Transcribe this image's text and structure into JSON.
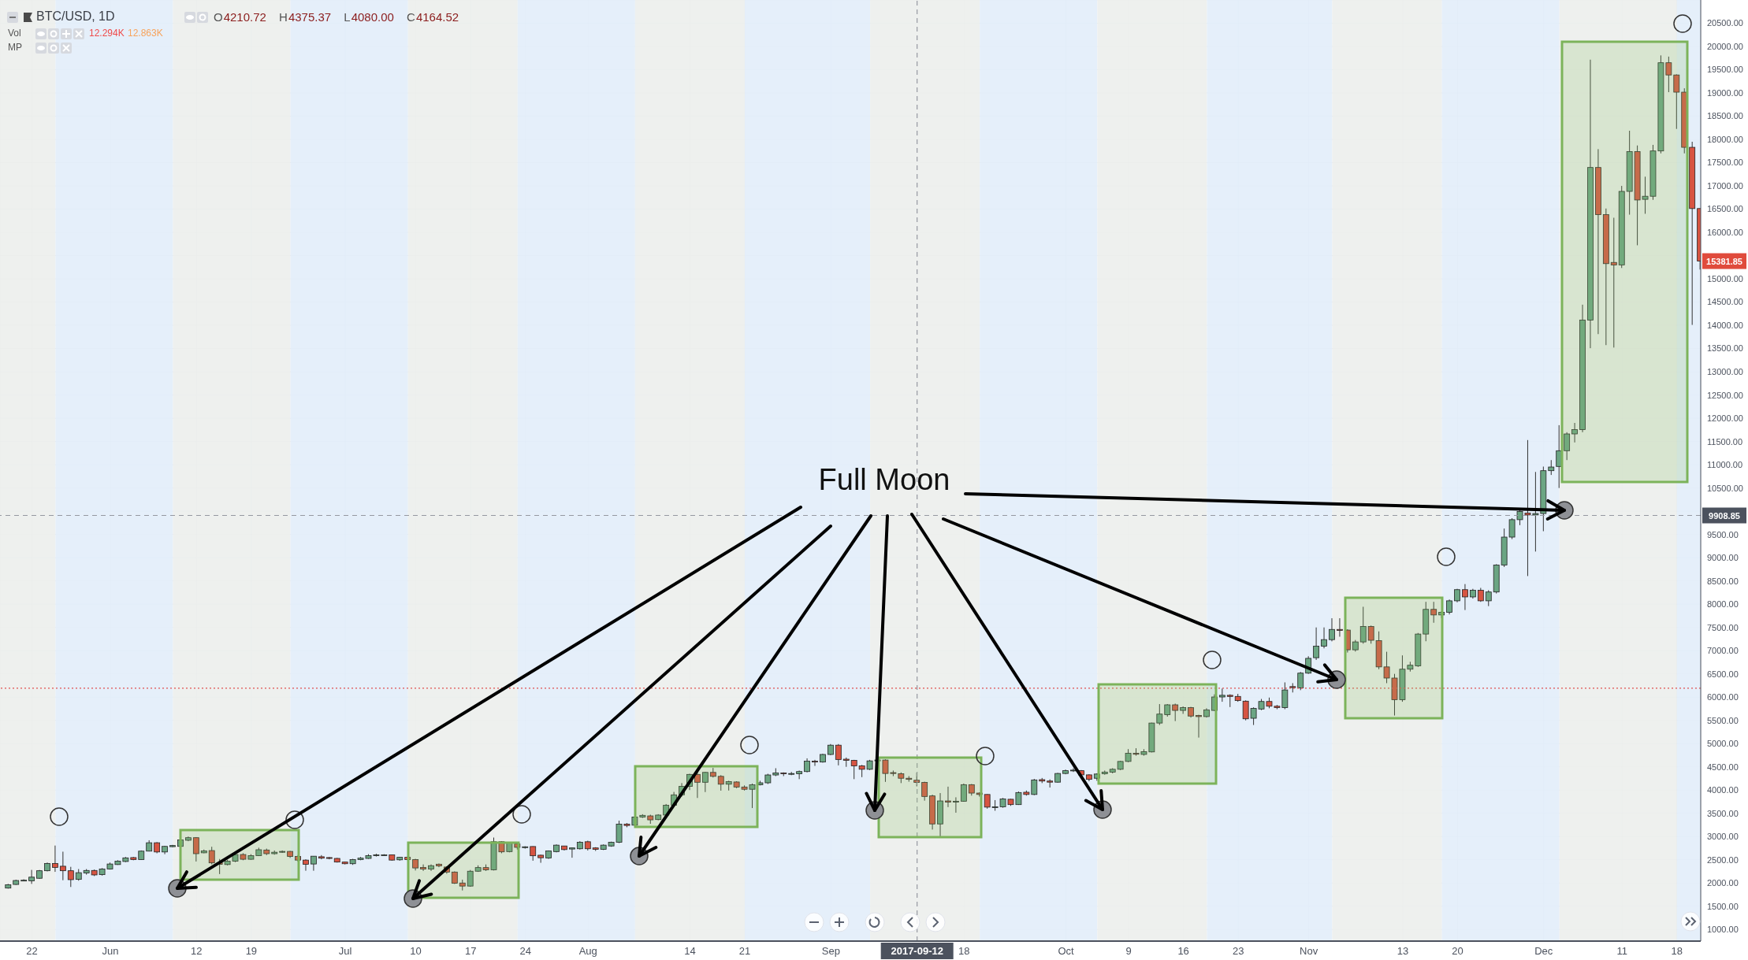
{
  "chart_data": {
    "type": "candlestick",
    "title": "BTC/USD, 1D",
    "subtitle": "O4210.72 H4375.37 L4080.00 C4164.52",
    "annotations": [
      "Vol",
      "12.294K",
      "12.863K",
      "MP",
      "Full Moon",
      {
        "text": "15381.85",
        "x": "2017-12-21",
        "y": 15381.85
      }
    ],
    "x": [
      "2017-05-19",
      "2017-05-20",
      "2017-05-21",
      "2017-05-22",
      "2017-05-23",
      "2017-05-24",
      "2017-05-25",
      "2017-05-26",
      "2017-05-27",
      "2017-05-28",
      "2017-05-29",
      "2017-05-30",
      "2017-05-31",
      "2017-06-01",
      "2017-06-02",
      "2017-06-03",
      "2017-06-04",
      "2017-06-05",
      "2017-06-06",
      "2017-06-07",
      "2017-06-08",
      "2017-06-09",
      "2017-06-10",
      "2017-06-11",
      "2017-06-12",
      "2017-06-13",
      "2017-06-14",
      "2017-06-15",
      "2017-06-16",
      "2017-06-17",
      "2017-06-18",
      "2017-06-19",
      "2017-06-20",
      "2017-06-21",
      "2017-06-22",
      "2017-06-23",
      "2017-06-24",
      "2017-06-25",
      "2017-06-26",
      "2017-06-27",
      "2017-06-28",
      "2017-06-29",
      "2017-06-30",
      "2017-07-01",
      "2017-07-02",
      "2017-07-03",
      "2017-07-04",
      "2017-07-05",
      "2017-07-06",
      "2017-07-07",
      "2017-07-08",
      "2017-07-09",
      "2017-07-10",
      "2017-07-11",
      "2017-07-12",
      "2017-07-13",
      "2017-07-14",
      "2017-07-15",
      "2017-07-16",
      "2017-07-17",
      "2017-07-18",
      "2017-07-19",
      "2017-07-20",
      "2017-07-21",
      "2017-07-22",
      "2017-07-23",
      "2017-07-24",
      "2017-07-25",
      "2017-07-26",
      "2017-07-27",
      "2017-07-28",
      "2017-07-29",
      "2017-07-30",
      "2017-07-31",
      "2017-08-01",
      "2017-08-02",
      "2017-08-03",
      "2017-08-04",
      "2017-08-05",
      "2017-08-06",
      "2017-08-07",
      "2017-08-08",
      "2017-08-09",
      "2017-08-10",
      "2017-08-11",
      "2017-08-12",
      "2017-08-13",
      "2017-08-14",
      "2017-08-15",
      "2017-08-16",
      "2017-08-17",
      "2017-08-18",
      "2017-08-19",
      "2017-08-20",
      "2017-08-21",
      "2017-08-22",
      "2017-08-23",
      "2017-08-24",
      "2017-08-25",
      "2017-08-26",
      "2017-08-27",
      "2017-08-28",
      "2017-08-29",
      "2017-08-30",
      "2017-08-31",
      "2017-09-01",
      "2017-09-02",
      "2017-09-03",
      "2017-09-04",
      "2017-09-05",
      "2017-09-06",
      "2017-09-07",
      "2017-09-08",
      "2017-09-09",
      "2017-09-10",
      "2017-09-11",
      "2017-09-12",
      "2017-09-13",
      "2017-09-14",
      "2017-09-15",
      "2017-09-16",
      "2017-09-17",
      "2017-09-18",
      "2017-09-19",
      "2017-09-20",
      "2017-09-21",
      "2017-09-22",
      "2017-09-23",
      "2017-09-24",
      "2017-09-25",
      "2017-09-26",
      "2017-09-27",
      "2017-09-28",
      "2017-09-29",
      "2017-09-30",
      "2017-10-01",
      "2017-10-02",
      "2017-10-03",
      "2017-10-04",
      "2017-10-05",
      "2017-10-06",
      "2017-10-07",
      "2017-10-08",
      "2017-10-09",
      "2017-10-10",
      "2017-10-11",
      "2017-10-12",
      "2017-10-13",
      "2017-10-14",
      "2017-10-15",
      "2017-10-16",
      "2017-10-17",
      "2017-10-18",
      "2017-10-19",
      "2017-10-20",
      "2017-10-21",
      "2017-10-22",
      "2017-10-23",
      "2017-10-24",
      "2017-10-25",
      "2017-10-26",
      "2017-10-27",
      "2017-10-28",
      "2017-10-29",
      "2017-10-30",
      "2017-10-31",
      "2017-11-01",
      "2017-11-02",
      "2017-11-03",
      "2017-11-04",
      "2017-11-05",
      "2017-11-06",
      "2017-11-07",
      "2017-11-08",
      "2017-11-09",
      "2017-11-10",
      "2017-11-11",
      "2017-11-12",
      "2017-11-13",
      "2017-11-14",
      "2017-11-15",
      "2017-11-16",
      "2017-11-17",
      "2017-11-18",
      "2017-11-19",
      "2017-11-20",
      "2017-11-21",
      "2017-11-22",
      "2017-11-23",
      "2017-11-24",
      "2017-11-25",
      "2017-11-26",
      "2017-11-27",
      "2017-11-28",
      "2017-11-29",
      "2017-11-30",
      "2017-12-01",
      "2017-12-02",
      "2017-12-03",
      "2017-12-04",
      "2017-12-05",
      "2017-12-06",
      "2017-12-07",
      "2017-12-08",
      "2017-12-09",
      "2017-12-10",
      "2017-12-11",
      "2017-12-12",
      "2017-12-13",
      "2017-12-14",
      "2017-12-15",
      "2017-12-16",
      "2017-12-17",
      "2017-12-18",
      "2017-12-19",
      "2017-12-20",
      "2017-12-21"
    ],
    "ohlc": [
      [
        1891,
        1980,
        1880,
        1963
      ],
      [
        1969,
        2070,
        1960,
        2054
      ],
      [
        2054,
        2080,
        2040,
        2060
      ],
      [
        2047,
        2282,
        1981,
        2126
      ],
      [
        2102,
        2280,
        2090,
        2264
      ],
      [
        2264,
        2440,
        2250,
        2421
      ],
      [
        2421,
        2806,
        2240,
        2336
      ],
      [
        2361,
        2674,
        2060,
        2264
      ],
      [
        2264,
        2348,
        1915,
        2072
      ],
      [
        2078,
        2300,
        2050,
        2222
      ],
      [
        2216,
        2300,
        2180,
        2270
      ],
      [
        2270,
        2290,
        2150,
        2174
      ],
      [
        2180,
        2320,
        2160,
        2300
      ],
      [
        2300,
        2440,
        2290,
        2409
      ],
      [
        2397,
        2490,
        2390,
        2469
      ],
      [
        2463,
        2560,
        2450,
        2541
      ],
      [
        2547,
        2560,
        2490,
        2505
      ],
      [
        2505,
        2700,
        2500,
        2686
      ],
      [
        2686,
        2920,
        2680,
        2866
      ],
      [
        2866,
        2880,
        2640,
        2668
      ],
      [
        2668,
        2800,
        2620,
        2788
      ],
      [
        2782,
        2820,
        2770,
        2806
      ],
      [
        2788,
        2960,
        2780,
        2926
      ],
      [
        2920,
        3000,
        2900,
        2975
      ],
      [
        2975,
        2985,
        2463,
        2631
      ],
      [
        2650,
        2720,
        2640,
        2692
      ],
      [
        2698,
        2780,
        2400,
        2433
      ],
      [
        2433,
        2517,
        2192,
        2403
      ],
      [
        2397,
        2500,
        2380,
        2469
      ],
      [
        2469,
        2640,
        2450,
        2613
      ],
      [
        2613,
        2640,
        2490,
        2511
      ],
      [
        2511,
        2620,
        2500,
        2589
      ],
      [
        2589,
        2760,
        2580,
        2716
      ],
      [
        2710,
        2740,
        2600,
        2631
      ],
      [
        2631,
        2700,
        2610,
        2662
      ],
      [
        2662,
        2700,
        2650,
        2680
      ],
      [
        2680,
        2690,
        2540,
        2571
      ],
      [
        2571,
        2600,
        2460,
        2493
      ],
      [
        2493,
        2510,
        2264,
        2403
      ],
      [
        2409,
        2580,
        2264,
        2577
      ],
      [
        2565,
        2600,
        2510,
        2535
      ],
      [
        2547,
        2560,
        2510,
        2529
      ],
      [
        2529,
        2540,
        2440,
        2451
      ],
      [
        2451,
        2460,
        2400,
        2415
      ],
      [
        2415,
        2520,
        2390,
        2505
      ],
      [
        2505,
        2560,
        2490,
        2535
      ],
      [
        2529,
        2620,
        2520,
        2589
      ],
      [
        2589,
        2630,
        2570,
        2607
      ],
      [
        2601,
        2620,
        2590,
        2607
      ],
      [
        2607,
        2610,
        2480,
        2493
      ],
      [
        2499,
        2560,
        2480,
        2553
      ],
      [
        2553,
        2570,
        2490,
        2505
      ],
      [
        2505,
        2520,
        2270,
        2324
      ],
      [
        2336,
        2400,
        2260,
        2300
      ],
      [
        2300,
        2400,
        2260,
        2373
      ],
      [
        2405,
        2420,
        2340,
        2368
      ],
      [
        2344,
        2360,
        2200,
        2236
      ],
      [
        2236,
        2250,
        1980,
        1994
      ],
      [
        2000,
        2072,
        1840,
        1934
      ],
      [
        1934,
        2280,
        1920,
        2254
      ],
      [
        2254,
        2380,
        2240,
        2332
      ],
      [
        2332,
        2400,
        2260,
        2284
      ],
      [
        2284,
        2978,
        2270,
        2888
      ],
      [
        2888,
        2900,
        2640,
        2670
      ],
      [
        2676,
        2880,
        2660,
        2858
      ],
      [
        2840,
        2860,
        2720,
        2767
      ],
      [
        2767,
        2790,
        2740,
        2779
      ],
      [
        2785,
        2790,
        2480,
        2586
      ],
      [
        2598,
        2610,
        2435,
        2544
      ],
      [
        2538,
        2700,
        2520,
        2689
      ],
      [
        2676,
        2830,
        2660,
        2815
      ],
      [
        2797,
        2800,
        2700,
        2719
      ],
      [
        2731,
        2760,
        2544,
        2755
      ],
      [
        2737,
        2900,
        2720,
        2876
      ],
      [
        2888,
        2910,
        2700,
        2737
      ],
      [
        2755,
        2770,
        2690,
        2725
      ],
      [
        2725,
        2830,
        2710,
        2815
      ],
      [
        2797,
        2890,
        2780,
        2876
      ],
      [
        2876,
        3341,
        2860,
        3268
      ],
      [
        3268,
        3290,
        3200,
        3238
      ],
      [
        3244,
        3430,
        3220,
        3419
      ],
      [
        3419,
        3480,
        3400,
        3456
      ],
      [
        3444,
        3470,
        3274,
        3359
      ],
      [
        3365,
        3480,
        3350,
        3462
      ],
      [
        3462,
        3700,
        3450,
        3673
      ],
      [
        3673,
        3960,
        3650,
        3897
      ],
      [
        3897,
        4150,
        3860,
        4078
      ],
      [
        4078,
        4350,
        4000,
        4337
      ],
      [
        4337,
        4390,
        3830,
        4168
      ],
      [
        4168,
        4390,
        3957,
        4380
      ],
      [
        4380,
        4476,
        4270,
        4295
      ],
      [
        4295,
        4320,
        3987,
        4126
      ],
      [
        4126,
        4200,
        3990,
        4180
      ],
      [
        4174,
        4190,
        4040,
        4066
      ],
      [
        4066,
        4100,
        3990,
        4017
      ],
      [
        4017,
        4140,
        3613,
        4114
      ],
      [
        4114,
        4200,
        4100,
        4156
      ],
      [
        4156,
        4350,
        4130,
        4325
      ],
      [
        4325,
        4470,
        4300,
        4368
      ],
      [
        4368,
        4380,
        4300,
        4350
      ],
      [
        4350,
        4390,
        4320,
        4356
      ],
      [
        4350,
        4420,
        4235,
        4398
      ],
      [
        4398,
        4682,
        4380,
        4621
      ],
      [
        4621,
        4650,
        4520,
        4603
      ],
      [
        4603,
        4780,
        4590,
        4766
      ],
      [
        4766,
        4990,
        4750,
        4966
      ],
      [
        4966,
        4990,
        4531,
        4658
      ],
      [
        4664,
        4700,
        4500,
        4640
      ],
      [
        4640,
        4650,
        4235,
        4519
      ],
      [
        4520,
        4540,
        4278,
        4447
      ],
      [
        4447,
        4650,
        4430,
        4628
      ],
      [
        4628,
        4660,
        4600,
        4646
      ],
      [
        4646,
        4660,
        4176,
        4357
      ],
      [
        4375,
        4420,
        4300,
        4357
      ],
      [
        4351,
        4380,
        4150,
        4254
      ],
      [
        4254,
        4300,
        4180,
        4230
      ],
      [
        4210.72,
        4375.37,
        4080,
        4164.52
      ],
      [
        4165,
        4180,
        3772,
        3862
      ],
      [
        3874,
        3900,
        3150,
        3271
      ],
      [
        3271,
        3935,
        3000,
        3766
      ],
      [
        3766,
        4073,
        3633,
        3740
      ],
      [
        3740,
        3844,
        3513,
        3760
      ],
      [
        3760,
        4140,
        3750,
        4116
      ],
      [
        4116,
        4130,
        3880,
        3935
      ],
      [
        3935,
        3950,
        3860,
        3905
      ],
      [
        3905,
        3910,
        3600,
        3633
      ],
      [
        3633,
        3784,
        3555,
        3640
      ],
      [
        3640,
        3830,
        3620,
        3808
      ],
      [
        3802,
        3810,
        3660,
        3687
      ],
      [
        3687,
        3970,
        3680,
        3947
      ],
      [
        3953,
        3990,
        3880,
        3905
      ],
      [
        3905,
        4240,
        3890,
        4218
      ],
      [
        4224,
        4260,
        4150,
        4194
      ],
      [
        4194,
        4230,
        4055,
        4170
      ],
      [
        4170,
        4370,
        4160,
        4357
      ],
      [
        4357,
        4440,
        4340,
        4417
      ],
      [
        4417,
        4470,
        4390,
        4429
      ],
      [
        4417,
        4430,
        4280,
        4327
      ],
      [
        4327,
        4340,
        4190,
        4230
      ],
      [
        4254,
        4360,
        4200,
        4345
      ],
      [
        4351,
        4420,
        4330,
        4387
      ],
      [
        4387,
        4470,
        4360,
        4447
      ],
      [
        4447,
        4630,
        4430,
        4616
      ],
      [
        4616,
        4881,
        4600,
        4791
      ],
      [
        4791,
        4900,
        4740,
        4770
      ],
      [
        4767,
        4880,
        4740,
        4827
      ],
      [
        4821,
        5450,
        4810,
        5442
      ],
      [
        5442,
        5850,
        5400,
        5635
      ],
      [
        5623,
        5850,
        5580,
        5834
      ],
      [
        5834,
        5860,
        5484,
        5714
      ],
      [
        5714,
        5800,
        5640,
        5774
      ],
      [
        5774,
        5790,
        5560,
        5593
      ],
      [
        5605,
        5620,
        5129,
        5581
      ],
      [
        5581,
        5760,
        5560,
        5726
      ],
      [
        5714,
        6060,
        5700,
        6003
      ],
      [
        6003,
        6184,
        5900,
        6039
      ],
      [
        6039,
        6060,
        5786,
        6015
      ],
      [
        6015,
        6070,
        5900,
        5925
      ],
      [
        5913,
        5930,
        5500,
        5533
      ],
      [
        5545,
        5780,
        5400,
        5756
      ],
      [
        5744,
        5960,
        5720,
        5906
      ],
      [
        5906,
        5990,
        5760,
        5804
      ],
      [
        5804,
        5830,
        5740,
        5774
      ],
      [
        5774,
        6317,
        5740,
        6154
      ],
      [
        6226,
        6300,
        6100,
        6205
      ],
      [
        6198,
        6540,
        6150,
        6516
      ],
      [
        6516,
        6880,
        6500,
        6834
      ],
      [
        6848,
        7499,
        6800,
        7096
      ],
      [
        7096,
        7499,
        7050,
        7237
      ],
      [
        7237,
        7697,
        7200,
        7456
      ],
      [
        7456,
        7697,
        7300,
        7435
      ],
      [
        7442,
        7460,
        6960,
        7018
      ],
      [
        7018,
        7230,
        6980,
        7188
      ],
      [
        7188,
        7944,
        7150,
        7520
      ],
      [
        7520,
        7540,
        7150,
        7223
      ],
      [
        7216,
        7414,
        6600,
        6650
      ],
      [
        6650,
        6976,
        6300,
        6410
      ],
      [
        6410,
        6500,
        5604,
        5943
      ],
      [
        5943,
        6898,
        5900,
        6601
      ],
      [
        6601,
        6760,
        6550,
        6686
      ],
      [
        6672,
        7380,
        6650,
        7357
      ],
      [
        7357,
        8050,
        7202,
        7888
      ],
      [
        7888,
        8050,
        7600,
        7768
      ],
      [
        7768,
        7850,
        7700,
        7824
      ],
      [
        7824,
        8100,
        7780,
        8072
      ],
      [
        8072,
        8330,
        8040,
        8312
      ],
      [
        8312,
        8432,
        7874,
        8156
      ],
      [
        8156,
        8330,
        8120,
        8298
      ],
      [
        8298,
        8350,
        8050,
        8072
      ],
      [
        8072,
        8300,
        7958,
        8262
      ],
      [
        8262,
        8860,
        8230,
        8842
      ],
      [
        8842,
        9627,
        8800,
        9443
      ],
      [
        9443,
        9850,
        9400,
        9818
      ],
      [
        9818,
        10050,
        9700,
        9995
      ],
      [
        9960,
        11531,
        8605,
        9920
      ],
      [
        9920,
        10845,
        9132,
        9950
      ],
      [
        9950,
        10960,
        9570,
        10872
      ],
      [
        10872,
        11100,
        10780,
        10951
      ],
      [
        10963,
        11851,
        10500,
        11302
      ],
      [
        11302,
        11700,
        11100,
        11663
      ],
      [
        11663,
        11900,
        11480,
        11755
      ],
      [
        11755,
        14444,
        11700,
        14114
      ],
      [
        14114,
        19716,
        13508,
        17396
      ],
      [
        17396,
        17791,
        13811,
        16381
      ],
      [
        16381,
        16513,
        13574,
        15327
      ],
      [
        15353,
        16315,
        13521,
        15300
      ],
      [
        15300,
        17000,
        15234,
        16882
      ],
      [
        16882,
        18187,
        16381,
        17738
      ],
      [
        17738,
        17870,
        15722,
        16697
      ],
      [
        16711,
        17198,
        16400,
        16777
      ],
      [
        16777,
        17883,
        16700,
        17752
      ],
      [
        17752,
        19808,
        17700,
        19650
      ],
      [
        19650,
        19782,
        19017,
        19387
      ],
      [
        19387,
        19400,
        18226,
        19017
      ],
      [
        19017,
        19100,
        17700,
        17830
      ],
      [
        17830,
        17950,
        14009,
        16513
      ],
      [
        16513,
        16513,
        15200,
        15381.85
      ]
    ],
    "xlim": [
      "2017-05-17T22:00",
      "2017-12-21T01:00"
    ],
    "xticks": [
      {
        "value": "2017-05-22",
        "label": "22"
      },
      {
        "value": "2017-06-01",
        "label": "Jun"
      },
      {
        "value": "2017-06-12",
        "label": "12"
      },
      {
        "value": "2017-06-19",
        "label": "19"
      },
      {
        "value": "2017-07-01",
        "label": "Jul"
      },
      {
        "value": "2017-07-10",
        "label": "10"
      },
      {
        "value": "2017-07-17",
        "label": "17"
      },
      {
        "value": "2017-07-24",
        "label": "24"
      },
      {
        "value": "2017-08-01",
        "label": "Aug"
      },
      {
        "value": "2017-08-14",
        "label": "14"
      },
      {
        "value": "2017-08-21",
        "label": "21"
      },
      {
        "value": "2017-09-01",
        "label": "Sep"
      },
      {
        "value": "2017-09-18",
        "label": "18"
      },
      {
        "value": "2017-10-01",
        "label": "Oct"
      },
      {
        "value": "2017-10-09",
        "label": "9"
      },
      {
        "value": "2017-10-16",
        "label": "16"
      },
      {
        "value": "2017-10-23",
        "label": "23"
      },
      {
        "value": "2017-11-01",
        "label": "Nov"
      },
      {
        "value": "2017-11-13",
        "label": "13"
      },
      {
        "value": "2017-11-20",
        "label": "20"
      },
      {
        "value": "2017-12-01",
        "label": "Dec"
      },
      {
        "value": "2017-12-11",
        "label": "11"
      },
      {
        "value": "2017-12-18",
        "label": "18"
      }
    ],
    "ylim": [
      750,
      21000
    ],
    "yticks": [
      {
        "value": 1000,
        "label": "1000.00"
      },
      {
        "value": 1500,
        "label": "1500.00"
      },
      {
        "value": 2000,
        "label": "2000.00"
      },
      {
        "value": 2500,
        "label": "2500.00"
      },
      {
        "value": 3000,
        "label": "3000.00"
      },
      {
        "value": 3500,
        "label": "3500.00"
      },
      {
        "value": 4000,
        "label": "4000.00"
      },
      {
        "value": 4500,
        "label": "4500.00"
      },
      {
        "value": 5000,
        "label": "5000.00"
      },
      {
        "value": 5500,
        "label": "5500.00"
      },
      {
        "value": 6000,
        "label": "6000.00"
      },
      {
        "value": 6500,
        "label": "6500.00"
      },
      {
        "value": 7000,
        "label": "7000.00"
      },
      {
        "value": 7500,
        "label": "7500.00"
      },
      {
        "value": 8000,
        "label": "8000.00"
      },
      {
        "value": 8500,
        "label": "8500.00"
      },
      {
        "value": 9000,
        "label": "9000.00"
      },
      {
        "value": 9500,
        "label": "9500.00"
      },
      {
        "value": 10000,
        "label": null
      },
      {
        "value": 10500,
        "label": "10500.00"
      },
      {
        "value": 11000,
        "label": "11000.00"
      },
      {
        "value": 11500,
        "label": "11500.00"
      },
      {
        "value": 12000,
        "label": "12000.00"
      },
      {
        "value": 12500,
        "label": "12500.00"
      },
      {
        "value": 13000,
        "label": "13000.00"
      },
      {
        "value": 13500,
        "label": "13500.00"
      },
      {
        "value": 14000,
        "label": "14000.00"
      },
      {
        "value": 14500,
        "label": "14500.00"
      },
      {
        "value": 15000,
        "label": "15000.00"
      },
      {
        "value": 15500,
        "label": null
      },
      {
        "value": 16000,
        "label": "16000.00"
      },
      {
        "value": 16500,
        "label": "16500.00"
      },
      {
        "value": 17000,
        "label": "17000.00"
      },
      {
        "value": 17500,
        "label": "17500.00"
      },
      {
        "value": 18000,
        "label": "18000.00"
      },
      {
        "value": 18500,
        "label": "18500.00"
      },
      {
        "value": 19000,
        "label": "19000.00"
      },
      {
        "value": 19500,
        "label": "19500.00"
      },
      {
        "value": 20000,
        "label": "20000.00"
      },
      {
        "value": 20500,
        "label": "20500.00"
      }
    ],
    "grid": true,
    "ref_lines": [
      {
        "axis": "x",
        "value": "2017-09-12",
        "label": "2017-09-12",
        "color": "#9598a1",
        "line_style": "dashed"
      },
      {
        "axis": "y",
        "value": 9908.85,
        "label": "9908.85",
        "color": "#9598a1",
        "line_style": "dashed"
      },
      {
        "axis": "y",
        "value": 6190,
        "color": "#e05050",
        "line_style": "dotted"
      }
    ],
    "bands": [
      {
        "axis": "x",
        "from": "2017-05-17T22:00",
        "to": "2017-05-25",
        "color": "#eceeec"
      },
      {
        "axis": "x",
        "from": "2017-05-25",
        "to": "2017-06-09",
        "color": "#e2edf9"
      },
      {
        "axis": "x",
        "from": "2017-06-09",
        "to": "2017-06-24",
        "color": "#eceeec"
      },
      {
        "axis": "x",
        "from": "2017-06-24",
        "to": "2017-07-09",
        "color": "#e2edf9"
      },
      {
        "axis": "x",
        "from": "2017-07-09",
        "to": "2017-07-23",
        "color": "#eceeec"
      },
      {
        "axis": "x",
        "from": "2017-07-23",
        "to": "2017-08-07",
        "color": "#e2edf9"
      },
      {
        "axis": "x",
        "from": "2017-08-07",
        "to": "2017-08-21",
        "color": "#eceeec"
      },
      {
        "axis": "x",
        "from": "2017-08-21",
        "to": "2017-09-06",
        "color": "#e2edf9"
      },
      {
        "axis": "x",
        "from": "2017-09-06",
        "to": "2017-09-20",
        "color": "#eceeec"
      },
      {
        "axis": "x",
        "from": "2017-09-20",
        "to": "2017-10-05",
        "color": "#e2edf9"
      },
      {
        "axis": "x",
        "from": "2017-10-05",
        "to": "2017-10-19",
        "color": "#eceeec"
      },
      {
        "axis": "x",
        "from": "2017-10-19",
        "to": "2017-11-04",
        "color": "#e2edf9"
      },
      {
        "axis": "x",
        "from": "2017-11-04",
        "to": "2017-11-18",
        "color": "#eceeec"
      },
      {
        "axis": "x",
        "from": "2017-11-18",
        "to": "2017-12-03",
        "color": "#e2edf9"
      },
      {
        "axis": "x",
        "from": "2017-12-03",
        "to": "2017-12-18",
        "color": "#eceeec"
      },
      {
        "axis": "x",
        "from": "2017-12-18",
        "to": "2017-12-21T01:00",
        "color": "#e2edf9"
      }
    ]
  }
}
